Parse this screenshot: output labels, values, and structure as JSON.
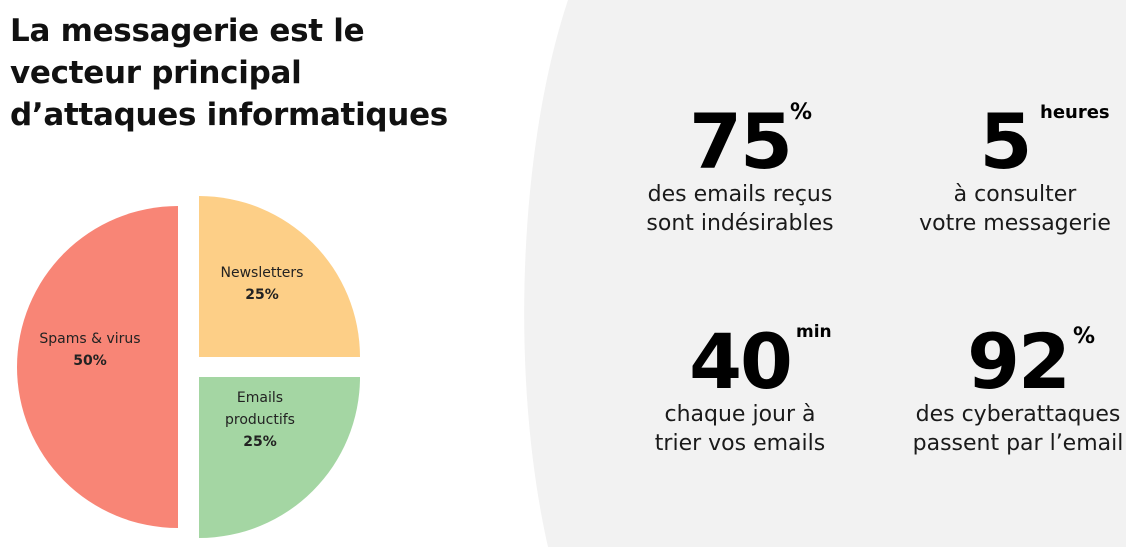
{
  "title": {
    "lines": [
      "La messagerie est le",
      "vecteur principal",
      "d’attaques informatiques"
    ]
  },
  "colors": {
    "panel_bg": "#f2f2f2",
    "spams": "#f88576",
    "newsletters": "#fdcf87",
    "emails": "#a4d6a3"
  },
  "chart_data": {
    "type": "pie",
    "slices": [
      {
        "label_lines": [
          "Spams & virus"
        ],
        "value": 50,
        "value_label": "50%",
        "color": "#f88576"
      },
      {
        "label_lines": [
          "Newsletters"
        ],
        "value": 25,
        "value_label": "25%",
        "color": "#fdcf87"
      },
      {
        "label_lines": [
          "Emails",
          "productifs"
        ],
        "value": 25,
        "value_label": "25%",
        "color": "#a4d6a3"
      }
    ]
  },
  "stats": [
    {
      "number": "75",
      "unit": "%",
      "lines": [
        "des emails reçus",
        "sont indésirables"
      ]
    },
    {
      "number": "5",
      "unit": "heures",
      "lines": [
        "à consulter",
        "votre messagerie"
      ]
    },
    {
      "number": "40",
      "unit": "min",
      "lines": [
        "chaque jour à",
        "trier vos emails"
      ]
    },
    {
      "number": "92",
      "unit": "%",
      "lines": [
        "des cyberattaques",
        "passent par l’email"
      ]
    }
  ]
}
